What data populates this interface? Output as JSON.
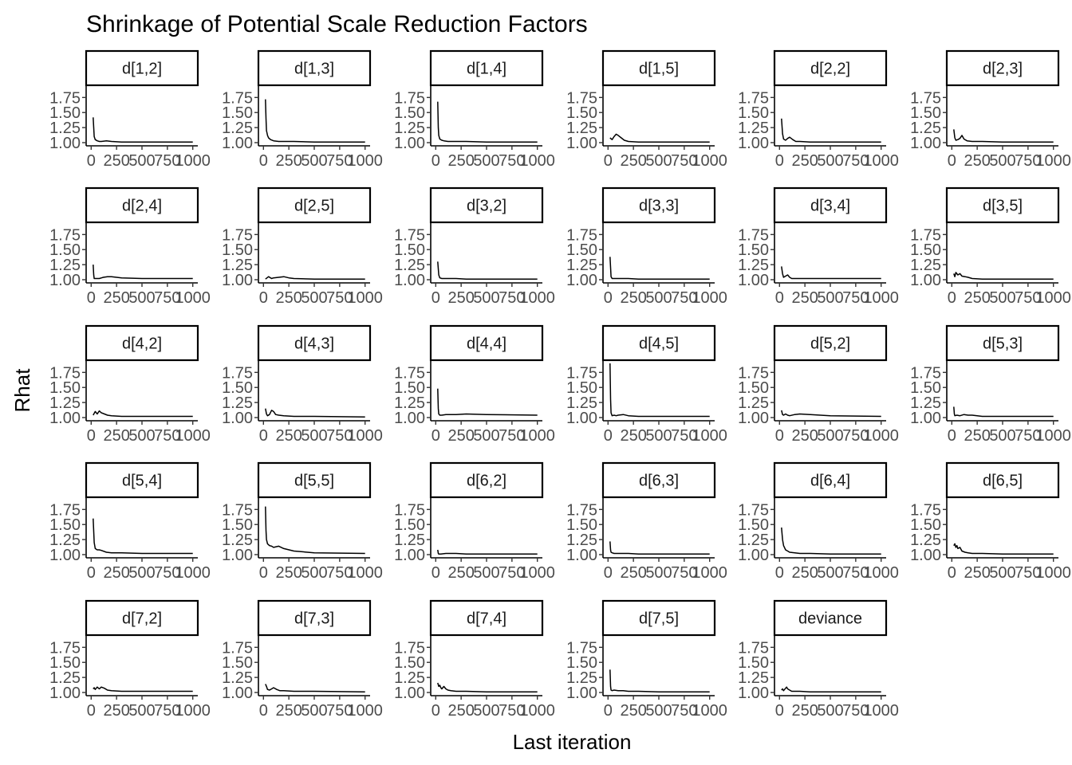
{
  "chart_data": {
    "type": "line",
    "title": "Shrinkage of Potential Scale Reduction Factors",
    "xlabel": "Last iteration",
    "ylabel": "Rhat",
    "xlim": [
      0,
      1000
    ],
    "ylim": [
      1.0,
      1.9
    ],
    "x_ticks": [
      0,
      250,
      500,
      750,
      1000
    ],
    "x_tick_labels": [
      "0",
      "250",
      "500",
      "750",
      "1000"
    ],
    "y_ticks": [
      1.0,
      1.25,
      1.5,
      1.75
    ],
    "y_tick_labels": [
      "1.00",
      "1.25",
      "1.50",
      "1.75"
    ],
    "grid": false,
    "legend": "none",
    "panels": [
      {
        "name": "d[1,2]",
        "x": [
          20,
          30,
          40,
          60,
          80,
          100,
          150,
          200,
          300,
          500,
          1000
        ],
        "y": [
          1.42,
          1.1,
          1.05,
          1.03,
          1.02,
          1.02,
          1.03,
          1.02,
          1.01,
          1.01,
          1.01
        ]
      },
      {
        "name": "d[1,3]",
        "x": [
          20,
          25,
          30,
          40,
          50,
          70,
          100,
          150,
          200,
          300,
          500,
          1000
        ],
        "y": [
          1.72,
          1.4,
          1.2,
          1.12,
          1.08,
          1.05,
          1.03,
          1.02,
          1.02,
          1.02,
          1.01,
          1.01
        ]
      },
      {
        "name": "d[1,4]",
        "x": [
          20,
          25,
          30,
          40,
          60,
          80,
          120,
          200,
          300,
          500,
          1000
        ],
        "y": [
          1.68,
          1.25,
          1.12,
          1.06,
          1.04,
          1.03,
          1.02,
          1.02,
          1.02,
          1.01,
          1.01
        ]
      },
      {
        "name": "d[1,5]",
        "x": [
          20,
          40,
          60,
          80,
          100,
          130,
          160,
          200,
          300,
          500,
          1000
        ],
        "y": [
          1.08,
          1.05,
          1.1,
          1.14,
          1.12,
          1.08,
          1.04,
          1.02,
          1.01,
          1.01,
          1.01
        ]
      },
      {
        "name": "d[2,2]",
        "x": [
          20,
          30,
          40,
          60,
          80,
          100,
          130,
          160,
          200,
          300,
          500,
          1000
        ],
        "y": [
          1.4,
          1.15,
          1.06,
          1.04,
          1.07,
          1.09,
          1.05,
          1.02,
          1.02,
          1.01,
          1.01,
          1.01
        ]
      },
      {
        "name": "d[2,3]",
        "x": [
          20,
          30,
          40,
          60,
          80,
          100,
          120,
          150,
          200,
          300,
          500,
          1000
        ],
        "y": [
          1.22,
          1.08,
          1.04,
          1.05,
          1.07,
          1.12,
          1.06,
          1.03,
          1.02,
          1.02,
          1.01,
          1.01
        ]
      },
      {
        "name": "d[2,4]",
        "x": [
          20,
          25,
          30,
          50,
          80,
          120,
          160,
          200,
          250,
          300,
          500,
          1000
        ],
        "y": [
          1.25,
          1.08,
          1.02,
          1.02,
          1.02,
          1.04,
          1.05,
          1.05,
          1.04,
          1.03,
          1.02,
          1.02
        ]
      },
      {
        "name": "d[2,5]",
        "x": [
          20,
          50,
          80,
          100,
          150,
          200,
          250,
          300,
          500,
          1000
        ],
        "y": [
          1.01,
          1.05,
          1.02,
          1.03,
          1.04,
          1.05,
          1.03,
          1.02,
          1.01,
          1.01
        ]
      },
      {
        "name": "d[3,2]",
        "x": [
          20,
          30,
          40,
          60,
          100,
          150,
          200,
          300,
          500,
          1000
        ],
        "y": [
          1.3,
          1.08,
          1.03,
          1.02,
          1.02,
          1.02,
          1.02,
          1.01,
          1.01,
          1.01
        ]
      },
      {
        "name": "d[3,3]",
        "x": [
          20,
          30,
          40,
          60,
          100,
          150,
          200,
          300,
          500,
          1000
        ],
        "y": [
          1.38,
          1.05,
          1.02,
          1.02,
          1.02,
          1.02,
          1.02,
          1.01,
          1.01,
          1.01
        ]
      },
      {
        "name": "d[3,4]",
        "x": [
          20,
          30,
          40,
          60,
          80,
          100,
          120,
          160,
          200,
          300,
          500,
          1000
        ],
        "y": [
          1.22,
          1.1,
          1.04,
          1.06,
          1.08,
          1.04,
          1.02,
          1.02,
          1.02,
          1.02,
          1.02,
          1.02
        ]
      },
      {
        "name": "d[3,5]",
        "x": [
          20,
          30,
          40,
          60,
          80,
          100,
          130,
          160,
          200,
          300,
          500,
          1000
        ],
        "y": [
          1.1,
          1.05,
          1.12,
          1.08,
          1.1,
          1.06,
          1.05,
          1.04,
          1.02,
          1.01,
          1.01,
          1.01
        ]
      },
      {
        "name": "d[4,2]",
        "x": [
          20,
          40,
          60,
          80,
          100,
          130,
          160,
          200,
          300,
          500,
          1000
        ],
        "y": [
          1.04,
          1.1,
          1.06,
          1.11,
          1.08,
          1.06,
          1.04,
          1.03,
          1.02,
          1.02,
          1.02
        ]
      },
      {
        "name": "d[4,3]",
        "x": [
          20,
          30,
          40,
          60,
          80,
          100,
          120,
          150,
          200,
          300,
          500,
          1000
        ],
        "y": [
          1.15,
          1.06,
          1.03,
          1.05,
          1.12,
          1.1,
          1.05,
          1.04,
          1.03,
          1.02,
          1.02,
          1.01
        ]
      },
      {
        "name": "d[4,4]",
        "x": [
          20,
          25,
          30,
          40,
          60,
          100,
          150,
          200,
          300,
          500,
          1000
        ],
        "y": [
          1.48,
          1.15,
          1.06,
          1.04,
          1.04,
          1.05,
          1.05,
          1.05,
          1.06,
          1.05,
          1.04
        ]
      },
      {
        "name": "d[4,5]",
        "x": [
          20,
          25,
          30,
          40,
          60,
          80,
          100,
          150,
          200,
          300,
          500,
          1000
        ],
        "y": [
          1.9,
          1.3,
          1.08,
          1.03,
          1.04,
          1.03,
          1.04,
          1.05,
          1.03,
          1.02,
          1.02,
          1.02
        ]
      },
      {
        "name": "d[5,2]",
        "x": [
          20,
          30,
          40,
          60,
          80,
          100,
          150,
          200,
          300,
          500,
          1000
        ],
        "y": [
          1.12,
          1.05,
          1.04,
          1.06,
          1.04,
          1.03,
          1.05,
          1.06,
          1.05,
          1.03,
          1.02
        ]
      },
      {
        "name": "d[5,3]",
        "x": [
          20,
          25,
          30,
          50,
          80,
          120,
          160,
          200,
          300,
          500,
          1000
        ],
        "y": [
          1.18,
          1.06,
          1.03,
          1.04,
          1.03,
          1.05,
          1.04,
          1.04,
          1.02,
          1.02,
          1.02
        ]
      },
      {
        "name": "d[5,4]",
        "x": [
          20,
          30,
          40,
          60,
          80,
          100,
          150,
          200,
          300,
          500,
          1000
        ],
        "y": [
          1.6,
          1.2,
          1.1,
          1.08,
          1.08,
          1.07,
          1.04,
          1.03,
          1.03,
          1.02,
          1.02
        ]
      },
      {
        "name": "d[5,5]",
        "x": [
          20,
          25,
          30,
          40,
          60,
          80,
          100,
          150,
          200,
          300,
          500,
          1000
        ],
        "y": [
          1.8,
          1.4,
          1.25,
          1.18,
          1.15,
          1.14,
          1.12,
          1.14,
          1.1,
          1.06,
          1.03,
          1.02
        ]
      },
      {
        "name": "d[6,2]",
        "x": [
          20,
          25,
          30,
          50,
          100,
          150,
          200,
          300,
          500,
          1000
        ],
        "y": [
          1.08,
          1.02,
          1.01,
          1.01,
          1.02,
          1.02,
          1.02,
          1.01,
          1.01,
          1.01
        ]
      },
      {
        "name": "d[6,3]",
        "x": [
          20,
          25,
          30,
          40,
          60,
          100,
          150,
          200,
          300,
          500,
          1000
        ],
        "y": [
          1.22,
          1.08,
          1.04,
          1.03,
          1.02,
          1.02,
          1.02,
          1.02,
          1.01,
          1.01,
          1.01
        ]
      },
      {
        "name": "d[6,4]",
        "x": [
          20,
          30,
          40,
          60,
          80,
          100,
          150,
          200,
          300,
          500,
          1000
        ],
        "y": [
          1.45,
          1.25,
          1.15,
          1.08,
          1.06,
          1.04,
          1.03,
          1.02,
          1.02,
          1.01,
          1.01
        ]
      },
      {
        "name": "d[6,5]",
        "x": [
          20,
          30,
          40,
          50,
          60,
          80,
          100,
          130,
          160,
          200,
          300,
          500,
          1000
        ],
        "y": [
          1.15,
          1.18,
          1.12,
          1.15,
          1.1,
          1.12,
          1.06,
          1.04,
          1.03,
          1.02,
          1.02,
          1.01,
          1.01
        ]
      },
      {
        "name": "d[7,2]",
        "x": [
          20,
          30,
          40,
          60,
          80,
          100,
          130,
          160,
          200,
          300,
          500,
          1000
        ],
        "y": [
          1.06,
          1.08,
          1.05,
          1.09,
          1.06,
          1.09,
          1.07,
          1.04,
          1.03,
          1.02,
          1.02,
          1.02
        ]
      },
      {
        "name": "d[7,3]",
        "x": [
          20,
          30,
          40,
          60,
          80,
          100,
          130,
          160,
          200,
          300,
          500,
          1000
        ],
        "y": [
          1.14,
          1.1,
          1.05,
          1.04,
          1.06,
          1.08,
          1.05,
          1.03,
          1.03,
          1.02,
          1.02,
          1.01
        ]
      },
      {
        "name": "d[7,4]",
        "x": [
          20,
          30,
          40,
          50,
          60,
          80,
          100,
          120,
          150,
          200,
          300,
          500,
          1000
        ],
        "y": [
          1.16,
          1.1,
          1.12,
          1.08,
          1.06,
          1.1,
          1.06,
          1.04,
          1.03,
          1.02,
          1.02,
          1.01,
          1.01
        ]
      },
      {
        "name": "d[7,5]",
        "x": [
          20,
          25,
          30,
          40,
          60,
          100,
          150,
          200,
          300,
          500,
          1000
        ],
        "y": [
          1.38,
          1.1,
          1.04,
          1.03,
          1.04,
          1.03,
          1.03,
          1.02,
          1.02,
          1.01,
          1.01
        ]
      },
      {
        "name": "deviance",
        "x": [
          20,
          30,
          40,
          60,
          70,
          80,
          100,
          120,
          160,
          200,
          300,
          500,
          1000
        ],
        "y": [
          1.04,
          1.06,
          1.03,
          1.07,
          1.09,
          1.06,
          1.04,
          1.02,
          1.02,
          1.02,
          1.01,
          1.01,
          1.01
        ]
      }
    ]
  }
}
